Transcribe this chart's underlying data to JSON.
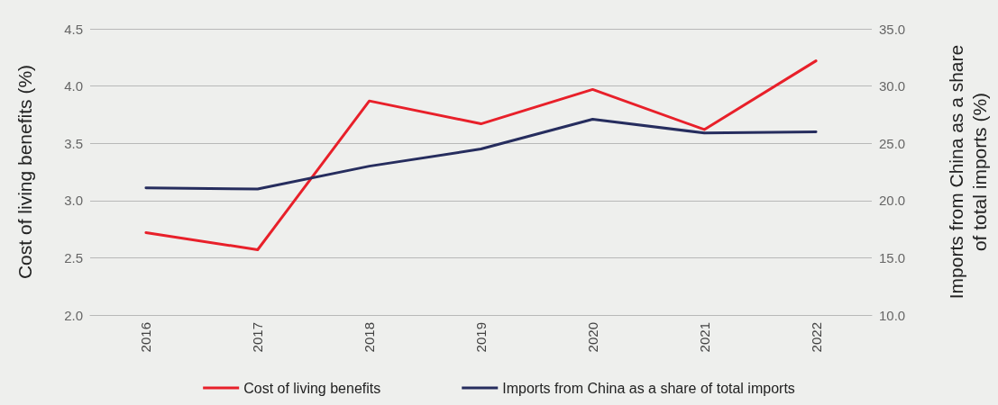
{
  "chart_data": {
    "type": "line",
    "categories": [
      "2016",
      "2017",
      "2018",
      "2019",
      "2020",
      "2021",
      "2022"
    ],
    "series": [
      {
        "name": "Cost of living benefits",
        "color": "#e8202a",
        "values": [
          2.72,
          2.57,
          3.87,
          3.67,
          3.97,
          3.62,
          4.22
        ]
      },
      {
        "name": "Imports from China as a share of total imports",
        "color": "#262d5e",
        "axis": "y2",
        "values": [
          21.1,
          21.0,
          23.0,
          24.5,
          27.1,
          25.9,
          26.0
        ]
      }
    ],
    "ylabel": "Cost of living benefits (%)",
    "y2label": "Imports from China as a share of total imports (%)",
    "ylim": [
      2.0,
      4.5
    ],
    "yticks": [
      {
        "value": 2,
        "label": "2.0"
      },
      {
        "value": 2.5,
        "label": "2.5"
      },
      {
        "value": 3,
        "label": "3.0"
      },
      {
        "value": 3.5,
        "label": "3.5"
      },
      {
        "value": 4,
        "label": "4.0"
      },
      {
        "value": 4.5,
        "label": "4.5"
      }
    ],
    "y2lim": [
      10,
      35
    ],
    "y2ticks": [
      {
        "value": 10,
        "label": "10.0"
      },
      {
        "value": 15,
        "label": "15.0"
      },
      {
        "value": 20,
        "label": "20.0"
      },
      {
        "value": 25,
        "label": "25.0"
      },
      {
        "value": 30,
        "label": "30.0"
      },
      {
        "value": 35,
        "label": "35.0"
      }
    ],
    "grid": "y",
    "legend": "bottom",
    "marker": "none",
    "line_style": "solid"
  }
}
